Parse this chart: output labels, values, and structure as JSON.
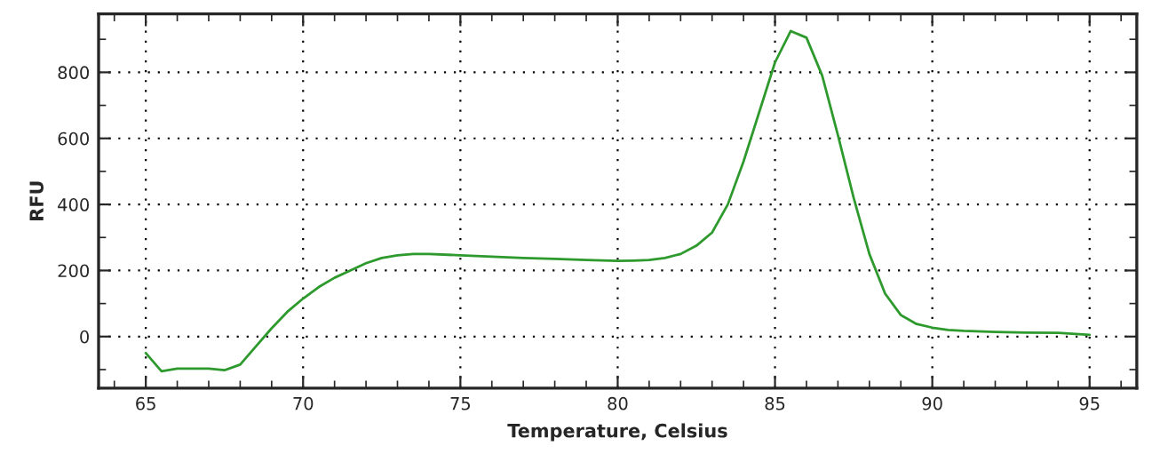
{
  "chart_data": {
    "type": "line",
    "xlabel": "Temperature, Celsius",
    "ylabel": "RFU",
    "xlim": [
      63.5,
      96.5
    ],
    "xticks": [
      65,
      70,
      75,
      80,
      85,
      90,
      95
    ],
    "ylim": [
      -156,
      977
    ],
    "yticks": [
      0,
      200,
      400,
      600,
      800
    ],
    "grid": true,
    "marker": "none",
    "line_style": "solid",
    "series": [
      {
        "color": "#2e9a2e",
        "x": [
          65,
          65.5,
          66,
          67,
          67.5,
          68,
          68.5,
          69,
          69.5,
          70,
          70.5,
          71,
          71.5,
          72,
          72.5,
          73,
          73.5,
          74,
          75,
          76,
          77,
          78,
          79,
          80,
          80.5,
          81,
          81.5,
          82,
          82.5,
          83,
          83.5,
          84,
          84.5,
          85,
          85.5,
          86,
          86.5,
          87,
          87.5,
          88,
          88.5,
          89,
          89.5,
          90,
          90.5,
          91,
          92,
          93,
          94,
          95
        ],
        "values": [
          -50,
          -105,
          -97,
          -97,
          -102,
          -85,
          -30,
          25,
          75,
          115,
          150,
          178,
          200,
          222,
          238,
          246,
          250,
          250,
          246,
          242,
          238,
          235,
          232,
          229,
          230,
          232,
          238,
          250,
          275,
          315,
          400,
          530,
          680,
          830,
          925,
          905,
          790,
          610,
          420,
          250,
          130,
          65,
          38,
          27,
          20,
          17,
          14,
          12,
          11,
          5
        ]
      }
    ]
  }
}
